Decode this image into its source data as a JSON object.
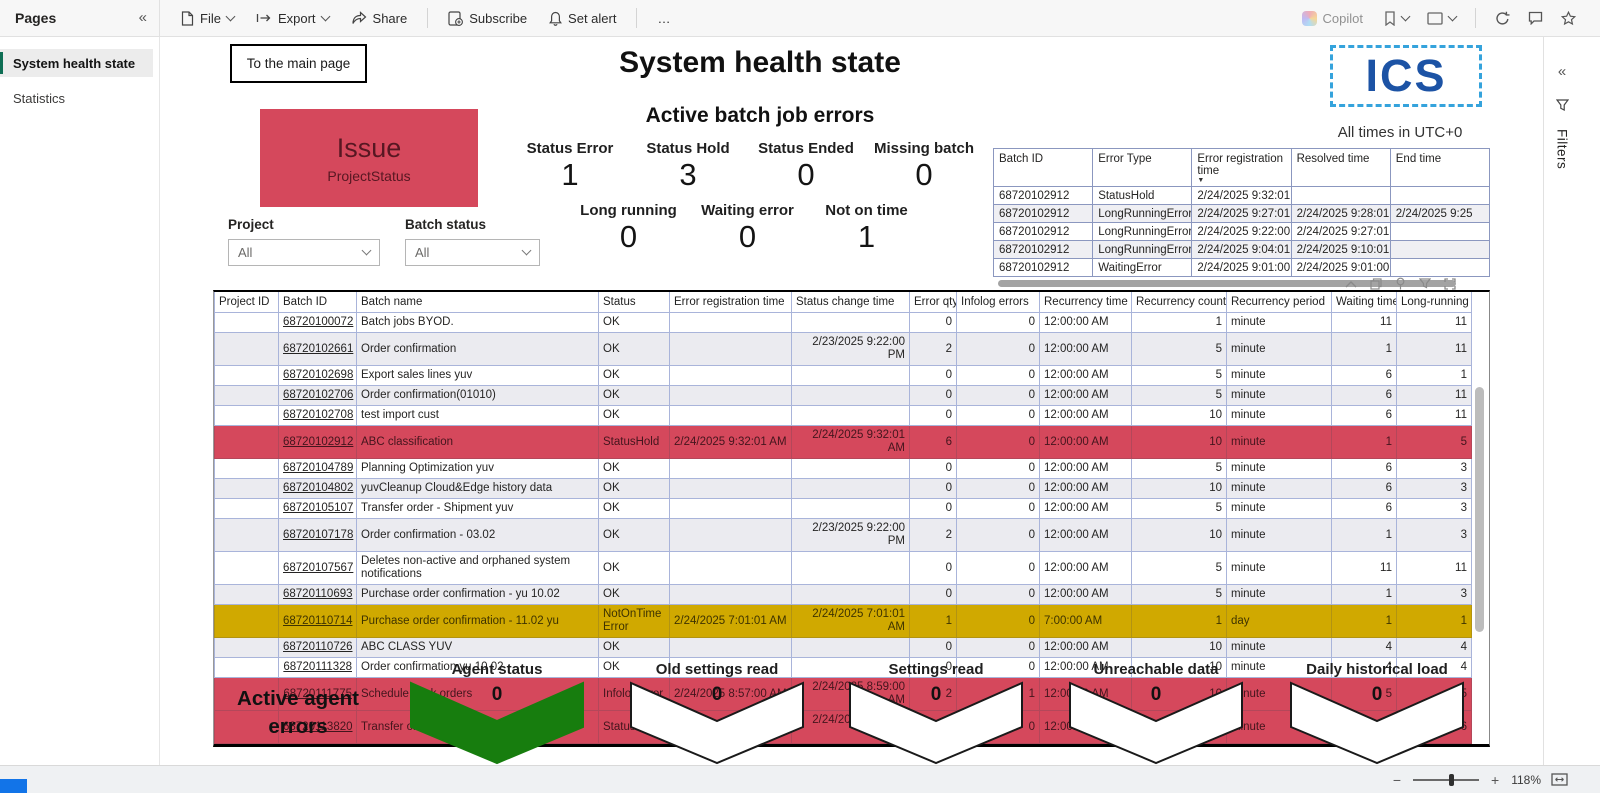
{
  "toolbar": {
    "file": "File",
    "export": "Export",
    "share": "Share",
    "subscribe": "Subscribe",
    "set_alert": "Set alert",
    "more": "…",
    "copilot": "Copilot"
  },
  "sidebar": {
    "title": "Pages",
    "items": [
      {
        "label": "System health state",
        "active": true
      },
      {
        "label": "Statistics",
        "active": false
      }
    ]
  },
  "filters_pane": {
    "label": "Filters"
  },
  "statusbar": {
    "zoom_out": "−",
    "zoom_in": "+",
    "zoom_level": "118%"
  },
  "colors": {
    "error_red": "#d5485c",
    "warning_gold": "#d0a900",
    "ok_green": "#177d0e",
    "logo_blue": "#1c53a5",
    "logo_dash_blue": "#35a3dc",
    "sidebar_accent": "#0e6e54",
    "statusbar_blue": "#1274e8"
  },
  "report": {
    "back_button": "To the main page",
    "title": "System health state",
    "subtitle": "Active batch job errors",
    "logo_text": "ICS",
    "timezone_note": "All times in UTC+0",
    "issue_card": {
      "title": "Issue",
      "subtitle": "ProjectStatus"
    },
    "kpis_row1": [
      {
        "label": "Status Error",
        "value": "1"
      },
      {
        "label": "Status Hold",
        "value": "3"
      },
      {
        "label": "Status Ended",
        "value": "0"
      },
      {
        "label": "Missing batch",
        "value": "0"
      }
    ],
    "kpis_row2": [
      {
        "label": "Long running",
        "value": "0"
      },
      {
        "label": "Waiting error",
        "value": "0"
      },
      {
        "label": "Not on time",
        "value": "1"
      }
    ],
    "slicers": [
      {
        "label": "Project",
        "value": "All"
      },
      {
        "label": "Batch status",
        "value": "All"
      }
    ],
    "error_table": {
      "columns": [
        "Batch ID",
        "Error Type",
        "Error registration time",
        "Resolved time",
        "End time"
      ],
      "sorted_column": "Error registration time",
      "rows": [
        [
          "68720102912",
          "StatusHold",
          "2/24/2025 9:32:01 A…",
          "",
          ""
        ],
        [
          "68720102912",
          "LongRunningError",
          "2/24/2025 9:27:01 A…",
          "2/24/2025 9:28:01 …",
          "2/24/2025 9:25"
        ],
        [
          "68720102912",
          "LongRunningError",
          "2/24/2025 9:22:00 A…",
          "2/24/2025 9:27:01 …",
          ""
        ],
        [
          "68720102912",
          "LongRunningError",
          "2/24/2025 9:04:01 A…",
          "2/24/2025 9:10:01 …",
          ""
        ],
        [
          "68720102912",
          "WaitingError",
          "2/24/2025 9:01:00 A…",
          "2/24/2025 9:01:00 …",
          ""
        ]
      ]
    },
    "main_table": {
      "columns": [
        "Project ID",
        "Batch ID",
        "Batch name",
        "Status",
        "Error registration time",
        "Status change time",
        "Error qty",
        "Infolog errors",
        "Recurrency time",
        "Recurrency count",
        "Recurrency period",
        "Waiting time",
        "Long-running time"
      ],
      "rows": [
        {
          "state": "normal",
          "cells": [
            "",
            "68720100072",
            "Batch jobs BYOD.",
            "OK",
            "",
            "",
            "0",
            "0",
            "12:00:00 AM",
            "1",
            "minute",
            "11",
            "11"
          ]
        },
        {
          "state": "normal",
          "cells": [
            "",
            "68720102661",
            "Order confirmation",
            "OK",
            "",
            "2/23/2025 9:22:00 PM",
            "2",
            "0",
            "12:00:00 AM",
            "5",
            "minute",
            "1",
            "11"
          ]
        },
        {
          "state": "normal",
          "cells": [
            "",
            "68720102698",
            "Export sales lines yuv",
            "OK",
            "",
            "",
            "0",
            "0",
            "12:00:00 AM",
            "5",
            "minute",
            "6",
            "1"
          ]
        },
        {
          "state": "normal",
          "cells": [
            "",
            "68720102706",
            "Order confirmation(01010)",
            "OK",
            "",
            "",
            "0",
            "0",
            "12:00:00 AM",
            "5",
            "minute",
            "6",
            "11"
          ]
        },
        {
          "state": "normal",
          "cells": [
            "",
            "68720102708",
            "test import cust",
            "OK",
            "",
            "",
            "0",
            "0",
            "12:00:00 AM",
            "10",
            "minute",
            "6",
            "11"
          ]
        },
        {
          "state": "error",
          "cells": [
            "",
            "68720102912",
            "ABC classification",
            "StatusHold",
            "2/24/2025 9:32:01 AM",
            "2/24/2025 9:32:01 AM",
            "6",
            "0",
            "12:00:00 AM",
            "10",
            "minute",
            "1",
            "5"
          ]
        },
        {
          "state": "normal",
          "cells": [
            "",
            "68720104789",
            "Planning Optimization yuv",
            "OK",
            "",
            "",
            "0",
            "0",
            "12:00:00 AM",
            "5",
            "minute",
            "6",
            "3"
          ]
        },
        {
          "state": "normal",
          "cells": [
            "",
            "68720104802",
            "yuvCleanup Cloud&Edge history data",
            "OK",
            "",
            "",
            "0",
            "0",
            "12:00:00 AM",
            "10",
            "minute",
            "6",
            "3"
          ]
        },
        {
          "state": "normal",
          "cells": [
            "",
            "68720105107",
            "Transfer order - Shipment yuv",
            "OK",
            "",
            "",
            "0",
            "0",
            "12:00:00 AM",
            "5",
            "minute",
            "6",
            "3"
          ]
        },
        {
          "state": "normal",
          "cells": [
            "",
            "68720107178",
            "Order confirmation - 03.02",
            "OK",
            "",
            "2/23/2025 9:22:00 PM",
            "2",
            "0",
            "12:00:00 AM",
            "10",
            "minute",
            "1",
            "3"
          ]
        },
        {
          "state": "normal",
          "cells": [
            "",
            "68720107567",
            "Deletes non-active and orphaned system notifications",
            "OK",
            "",
            "",
            "0",
            "0",
            "12:00:00 AM",
            "5",
            "minute",
            "11",
            "11"
          ]
        },
        {
          "state": "normal",
          "cells": [
            "",
            "68720110693",
            "Purchase order confirmation - yu 10.02",
            "OK",
            "",
            "",
            "0",
            "0",
            "12:00:00 AM",
            "5",
            "minute",
            "1",
            "3"
          ]
        },
        {
          "state": "warning",
          "cells": [
            "",
            "68720110714",
            "Purchase order confirmation - 11.02 yu",
            "NotOnTimeError",
            "2/24/2025 7:01:01 AM",
            "2/24/2025 7:01:01 AM",
            "1",
            "0",
            "7:00:00 AM",
            "1",
            "day",
            "1",
            "1"
          ]
        },
        {
          "state": "normal",
          "cells": [
            "",
            "68720110726",
            "ABC CLASS YUV",
            "OK",
            "",
            "",
            "0",
            "0",
            "12:00:00 AM",
            "10",
            "minute",
            "4",
            "4"
          ]
        },
        {
          "state": "normal",
          "cells": [
            "",
            "68720111328",
            "Order confirmation yu 10 02",
            "OK",
            "",
            "",
            "0",
            "0",
            "12:00:00 AM",
            "10",
            "minute",
            "4",
            "4"
          ]
        },
        {
          "state": "error",
          "cells": [
            "",
            "68720111775",
            "Schedule work orders",
            "InfologError",
            "2/24/2025 8:57:00 AM",
            "2/24/2025 8:59:00 AM",
            "2",
            "1",
            "12:00:00 AM",
            "10",
            "minute",
            "5",
            "5"
          ]
        },
        {
          "state": "error",
          "cells": [
            "",
            "68720113820",
            "Transfer order - Receipt",
            "StatusHold",
            "2/24/2025 9:00:00 AM",
            "2/24/2025 9:00:00 AM",
            "2",
            "0",
            "12:00:00 AM",
            "1",
            "minute",
            "10",
            "6"
          ]
        }
      ]
    },
    "agent_errors_title": "Active agent errors",
    "chevrons": [
      {
        "label": "Agent status",
        "value": "0",
        "variant": "green"
      },
      {
        "label": "Old settings read",
        "value": "0",
        "variant": "white"
      },
      {
        "label": "Settings read",
        "value": "0",
        "variant": "white"
      },
      {
        "label": "Unreachable data",
        "value": "0",
        "variant": "white"
      },
      {
        "label": "Daily historical load",
        "value": "0",
        "variant": "white"
      }
    ]
  }
}
